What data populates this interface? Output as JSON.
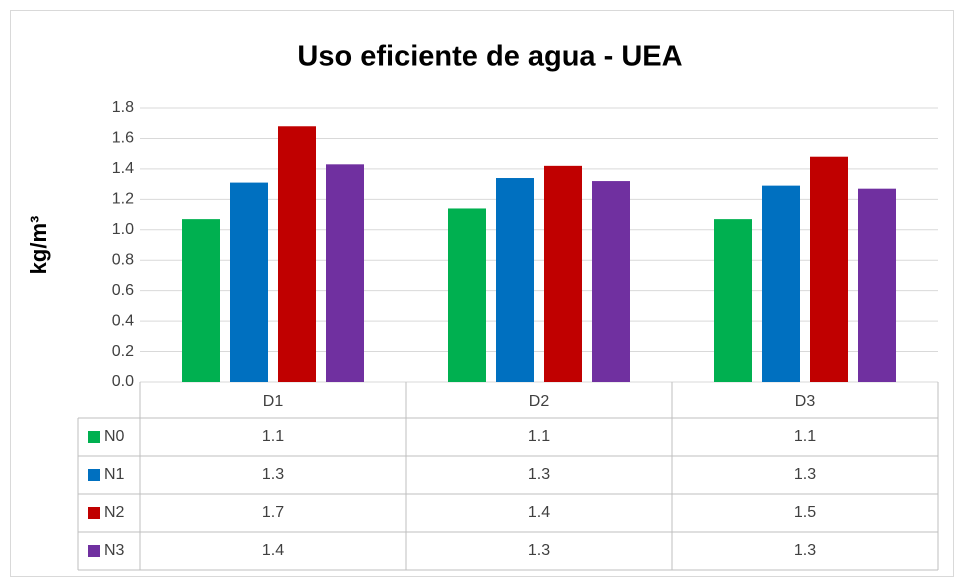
{
  "chart_data": {
    "type": "bar",
    "title": "Uso eficiente de agua - UEA",
    "y_label": "kg/m³",
    "categories": [
      "D1",
      "D2",
      "D3"
    ],
    "series": [
      {
        "name": "N0",
        "color": "#00b050",
        "values": [
          1.07,
          1.14,
          1.07
        ],
        "value_labels": [
          "1.1",
          "1.1",
          "1.1"
        ]
      },
      {
        "name": "N1",
        "color": "#0070c0",
        "values": [
          1.31,
          1.34,
          1.29
        ],
        "value_labels": [
          "1.3",
          "1.3",
          "1.3"
        ]
      },
      {
        "name": "N2",
        "color": "#c00000",
        "values": [
          1.68,
          1.42,
          1.48
        ],
        "value_labels": [
          "1.7",
          "1.4",
          "1.5"
        ]
      },
      {
        "name": "N3",
        "color": "#7030a0",
        "values": [
          1.43,
          1.32,
          1.27
        ],
        "value_labels": [
          "1.4",
          "1.3",
          "1.3"
        ]
      }
    ],
    "ylim": [
      0,
      1.8
    ],
    "yticks": [
      {
        "value": 0,
        "label": "0.0"
      },
      0.2,
      0.4,
      0.6,
      0.8,
      {
        "value": 1,
        "label": "1.0"
      },
      1.2,
      1.4,
      1.6,
      1.8
    ],
    "grid": true,
    "data_table": true
  }
}
